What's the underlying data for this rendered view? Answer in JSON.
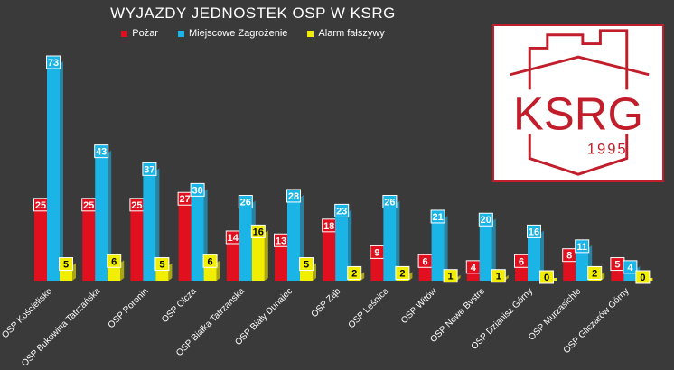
{
  "chart_data": {
    "type": "bar",
    "title": "WYJAZDY JEDNOSTEK OSP W KSRG",
    "categories": [
      "OSP Kościelisko",
      "OSP Bukowina Tatrzańska",
      "OSP Poronin",
      "OSP Olcza",
      "OSP Białka Tatrzańska",
      "OSP Biały Dunajec",
      "OSP Ząb",
      "OSP Leśnica",
      "OSP Witów",
      "OSP Nowe Bystre",
      "OSP Dzianisz Górny",
      "OSP Murzasichle",
      "OSP Gliczarów Górny"
    ],
    "series": [
      {
        "name": "Pożar",
        "color": "#e0101e",
        "values": [
          25,
          25,
          25,
          27,
          14,
          13,
          18,
          9,
          6,
          4,
          6,
          8,
          5
        ]
      },
      {
        "name": "Miejscowe Zagrożenie",
        "color": "#1ab4e6",
        "values": [
          73,
          43,
          37,
          30,
          26,
          28,
          23,
          26,
          21,
          20,
          16,
          11,
          4
        ]
      },
      {
        "name": "Alarm fałszywy",
        "color": "#f2ee00",
        "values": [
          5,
          6,
          5,
          6,
          16,
          5,
          2,
          2,
          1,
          1,
          0,
          2,
          0
        ]
      }
    ],
    "ylim": [
      0,
      73
    ],
    "grid": false,
    "legend_position": "top-center"
  },
  "logo": {
    "text": "KSRG",
    "year": "1995",
    "color": "#c21d2a"
  }
}
